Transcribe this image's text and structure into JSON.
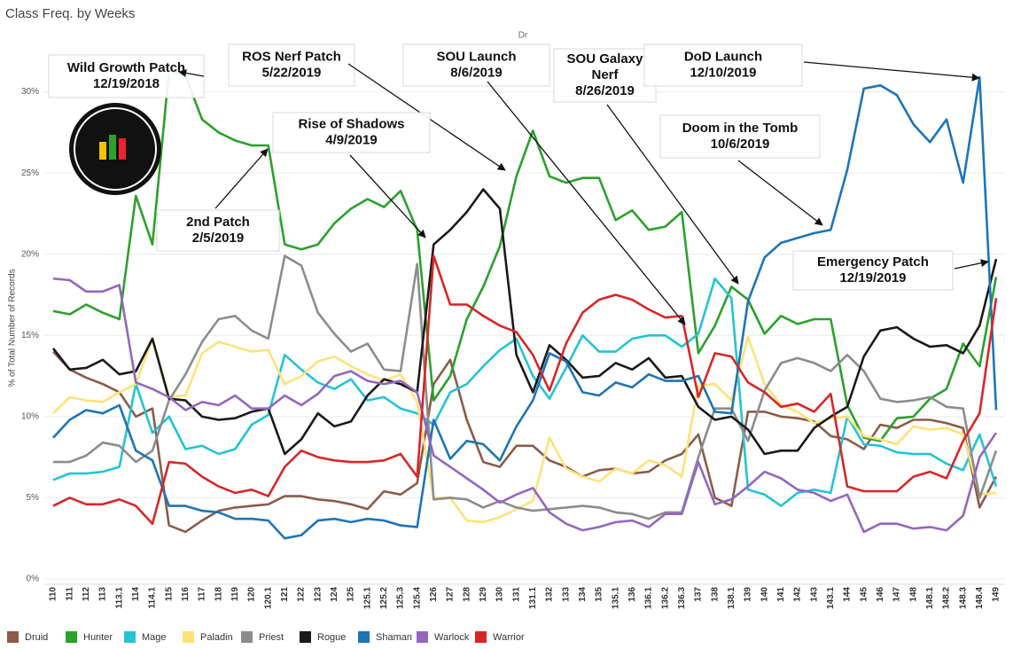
{
  "chart_data": {
    "type": "line",
    "title": "Class Freq. by Weeks",
    "header_label": "Dr",
    "ylabel": "% of Total Number of Records",
    "ylim": [
      0,
      33.8
    ],
    "yticks": [
      {
        "value": 0,
        "label": "0%"
      },
      {
        "value": 5,
        "label": "5%"
      },
      {
        "value": 10,
        "label": "10%"
      },
      {
        "value": 15,
        "label": "15%"
      },
      {
        "value": 20,
        "label": "20%"
      },
      {
        "value": 25,
        "label": "25%"
      },
      {
        "value": 30,
        "label": "30%"
      }
    ],
    "grid": true,
    "legend": "bottom-left",
    "categories": [
      "110",
      "111",
      "112",
      "113",
      "113.1",
      "114",
      "114.1",
      "115",
      "116",
      "117",
      "118",
      "119",
      "120",
      "120.1",
      "121",
      "122",
      "123",
      "124",
      "125",
      "125.1",
      "125.2",
      "125.3",
      "125.4",
      "126",
      "127",
      "128",
      "129",
      "130",
      "131",
      "131.1",
      "132",
      "133",
      "134",
      "135",
      "135.1",
      "136",
      "136.1",
      "136.2",
      "136.3",
      "137",
      "138",
      "138.1",
      "139",
      "140",
      "141",
      "142",
      "143",
      "143.1",
      "144",
      "145",
      "146",
      "147",
      "148",
      "148.1",
      "148.2",
      "148.3",
      "148.4",
      "149"
    ],
    "series": [
      {
        "name": "Druid",
        "color": "#8a5c4a",
        "values": [
          14.0,
          12.9,
          12.4,
          12.0,
          11.5,
          10.0,
          10.5,
          3.3,
          2.9,
          3.6,
          4.2,
          4.4,
          4.5,
          4.6,
          5.1,
          5.1,
          4.9,
          4.8,
          4.6,
          4.3,
          5.4,
          5.2,
          5.9,
          12.0,
          13.5,
          9.8,
          7.2,
          6.9,
          8.2,
          8.2,
          7.3,
          6.9,
          6.3,
          6.7,
          6.8,
          6.5,
          6.6,
          7.3,
          7.7,
          8.9,
          5.0,
          4.5,
          10.3,
          10.3,
          10.0,
          9.9,
          9.7,
          8.8,
          8.6,
          8.0,
          9.5,
          9.3,
          9.8,
          9.8,
          9.6,
          9.3,
          4.4,
          6.3
        ]
      },
      {
        "name": "Hunter",
        "color": "#2ca02c",
        "values": [
          16.5,
          16.3,
          16.9,
          16.4,
          16.0,
          23.6,
          20.6,
          31.3,
          31.0,
          28.3,
          27.5,
          27.0,
          26.7,
          26.7,
          20.6,
          20.3,
          20.6,
          21.9,
          22.8,
          23.4,
          22.9,
          23.9,
          21.5,
          11.0,
          12.5,
          16.0,
          18.0,
          20.5,
          24.8,
          27.6,
          24.8,
          24.4,
          24.7,
          24.7,
          22.1,
          22.7,
          21.5,
          21.7,
          22.6,
          13.9,
          15.6,
          18.0,
          17.2,
          15.1,
          16.2,
          15.7,
          16.0,
          16.0,
          10.7,
          8.7,
          8.5,
          9.9,
          10.0,
          11.1,
          11.7,
          14.5,
          13.1,
          18.6
        ]
      },
      {
        "name": "Mage",
        "color": "#25c3d3",
        "values": [
          6.1,
          6.5,
          6.5,
          6.6,
          6.9,
          12.0,
          9.0,
          10.0,
          8.0,
          8.2,
          7.7,
          8.0,
          9.5,
          10.1,
          13.8,
          12.9,
          12.1,
          11.7,
          12.3,
          11.0,
          11.2,
          10.5,
          10.2,
          9.5,
          11.5,
          12.0,
          13.1,
          14.1,
          14.8,
          12.5,
          11.1,
          13.0,
          15.0,
          14.0,
          14.0,
          14.8,
          15.0,
          15.0,
          14.3,
          15.1,
          18.5,
          17.3,
          5.5,
          5.2,
          4.5,
          5.3,
          5.5,
          5.3,
          10.0,
          8.3,
          8.2,
          7.8,
          7.7,
          7.7,
          7.1,
          6.7,
          8.9,
          5.7
        ]
      },
      {
        "name": "Paladin",
        "color": "#fde27a",
        "values": [
          10.2,
          11.2,
          11.0,
          10.9,
          11.5,
          12.0,
          14.8,
          11.2,
          11.3,
          13.9,
          14.6,
          14.3,
          14.0,
          14.1,
          12.0,
          12.5,
          13.4,
          13.7,
          13.1,
          12.6,
          12.2,
          12.6,
          10.9,
          5.0,
          5.0,
          3.6,
          3.5,
          3.8,
          4.3,
          4.8,
          8.7,
          6.8,
          6.3,
          6.0,
          6.8,
          6.5,
          7.3,
          7.0,
          6.3,
          11.9,
          12.0,
          11.0,
          14.9,
          12.0,
          10.7,
          10.3,
          9.6,
          9.9,
          10.0,
          8.8,
          8.6,
          8.3,
          9.4,
          9.2,
          9.3,
          8.9,
          5.2,
          5.3
        ]
      },
      {
        "name": "Priest",
        "color": "#8c8c8c",
        "values": [
          7.2,
          7.2,
          7.6,
          8.4,
          8.2,
          7.2,
          7.9,
          11.0,
          12.6,
          14.6,
          16.0,
          16.2,
          15.3,
          14.8,
          19.9,
          19.3,
          16.4,
          15.1,
          14.0,
          14.5,
          12.9,
          12.8,
          19.4,
          4.9,
          5.0,
          4.9,
          4.4,
          4.8,
          4.4,
          4.2,
          4.3,
          4.4,
          4.5,
          4.4,
          4.1,
          4.0,
          3.7,
          4.1,
          4.1,
          7.5,
          10.5,
          10.5,
          8.5,
          11.6,
          13.3,
          13.6,
          13.3,
          12.8,
          13.8,
          12.8,
          11.1,
          10.9,
          11.0,
          11.2,
          10.6,
          10.5,
          5.0,
          7.9
        ]
      },
      {
        "name": "Rogue",
        "color": "#1a1a1a",
        "values": [
          14.2,
          12.9,
          13.0,
          13.5,
          12.6,
          12.8,
          14.8,
          11.1,
          11.0,
          10.0,
          9.8,
          9.9,
          10.3,
          10.5,
          7.7,
          8.6,
          10.2,
          9.4,
          9.7,
          11.3,
          12.3,
          12.0,
          11.5,
          20.6,
          21.5,
          22.6,
          24.0,
          22.8,
          13.8,
          11.5,
          14.4,
          13.5,
          12.4,
          12.5,
          13.3,
          12.9,
          13.6,
          12.4,
          12.5,
          10.6,
          9.8,
          10.0,
          9.2,
          7.7,
          7.9,
          7.9,
          9.3,
          10.0,
          10.6,
          13.7,
          15.3,
          15.5,
          14.8,
          14.3,
          14.4,
          13.9,
          15.6,
          19.7
        ]
      },
      {
        "name": "Shaman",
        "color": "#1f74b4",
        "values": [
          8.7,
          9.8,
          10.4,
          10.2,
          10.7,
          7.9,
          7.3,
          4.5,
          4.5,
          4.2,
          4.1,
          3.7,
          3.7,
          3.6,
          2.5,
          2.7,
          3.6,
          3.7,
          3.5,
          3.7,
          3.6,
          3.3,
          3.2,
          9.8,
          7.4,
          8.5,
          8.3,
          7.3,
          9.4,
          11.0,
          13.9,
          13.4,
          11.5,
          11.3,
          12.1,
          11.8,
          12.6,
          12.2,
          12.2,
          12.5,
          10.3,
          10.2,
          17.1,
          19.8,
          20.7,
          21.0,
          21.3,
          21.5,
          25.2,
          30.2,
          30.4,
          29.8,
          28.0,
          26.9,
          28.3,
          24.4,
          30.9,
          10.4
        ]
      },
      {
        "name": "Warlock",
        "color": "#9467bd",
        "values": [
          18.5,
          18.4,
          17.7,
          17.7,
          18.1,
          12.1,
          11.7,
          11.2,
          10.4,
          10.9,
          10.7,
          11.3,
          10.5,
          10.5,
          11.3,
          10.7,
          11.4,
          12.5,
          12.8,
          12.2,
          12.0,
          12.2,
          11.5,
          7.6,
          6.9,
          6.2,
          5.5,
          4.7,
          5.2,
          5.6,
          4.1,
          3.4,
          3.0,
          3.2,
          3.5,
          3.6,
          3.2,
          4.0,
          4.0,
          7.2,
          4.6,
          4.9,
          5.7,
          6.6,
          6.2,
          5.5,
          5.3,
          4.8,
          5.2,
          2.9,
          3.4,
          3.4,
          3.1,
          3.2,
          3.0,
          3.9,
          7.5,
          9.0
        ]
      },
      {
        "name": "Warrior",
        "color": "#d62728",
        "values": [
          4.5,
          5.0,
          4.6,
          4.6,
          4.9,
          4.5,
          3.4,
          7.2,
          7.1,
          6.3,
          5.7,
          5.3,
          5.5,
          5.1,
          6.9,
          7.9,
          7.5,
          7.3,
          7.2,
          7.2,
          7.3,
          7.7,
          6.3,
          19.9,
          16.9,
          16.9,
          16.2,
          15.6,
          15.2,
          13.8,
          11.6,
          14.5,
          16.4,
          17.2,
          17.5,
          17.2,
          16.6,
          16.1,
          16.2,
          11.2,
          13.9,
          13.7,
          12.1,
          11.5,
          10.6,
          10.8,
          10.3,
          11.4,
          5.7,
          5.4,
          5.4,
          5.4,
          6.3,
          6.6,
          6.2,
          8.5,
          10.2,
          17.3
        ]
      }
    ],
    "annotations": [
      {
        "lines": [
          "Wild Growth Patch",
          "12/19/2018"
        ]
      },
      {
        "lines": [
          "ROS Nerf Patch",
          "5/22/2019"
        ]
      },
      {
        "lines": [
          "SOU Launch",
          "8/6/2019"
        ]
      },
      {
        "lines": [
          "SOU Galaxy",
          "Nerf",
          "8/26/2019"
        ]
      },
      {
        "lines": [
          "DoD Launch",
          "12/10/2019"
        ]
      },
      {
        "lines": [
          "Rise of Shadows",
          "4/9/2019"
        ]
      },
      {
        "lines": [
          "Doom in the Tomb",
          "10/6/2019"
        ]
      },
      {
        "lines": [
          "2nd Patch",
          "2/5/2019"
        ]
      },
      {
        "lines": [
          "Emergency Patch",
          "12/19/2019"
        ]
      }
    ]
  }
}
